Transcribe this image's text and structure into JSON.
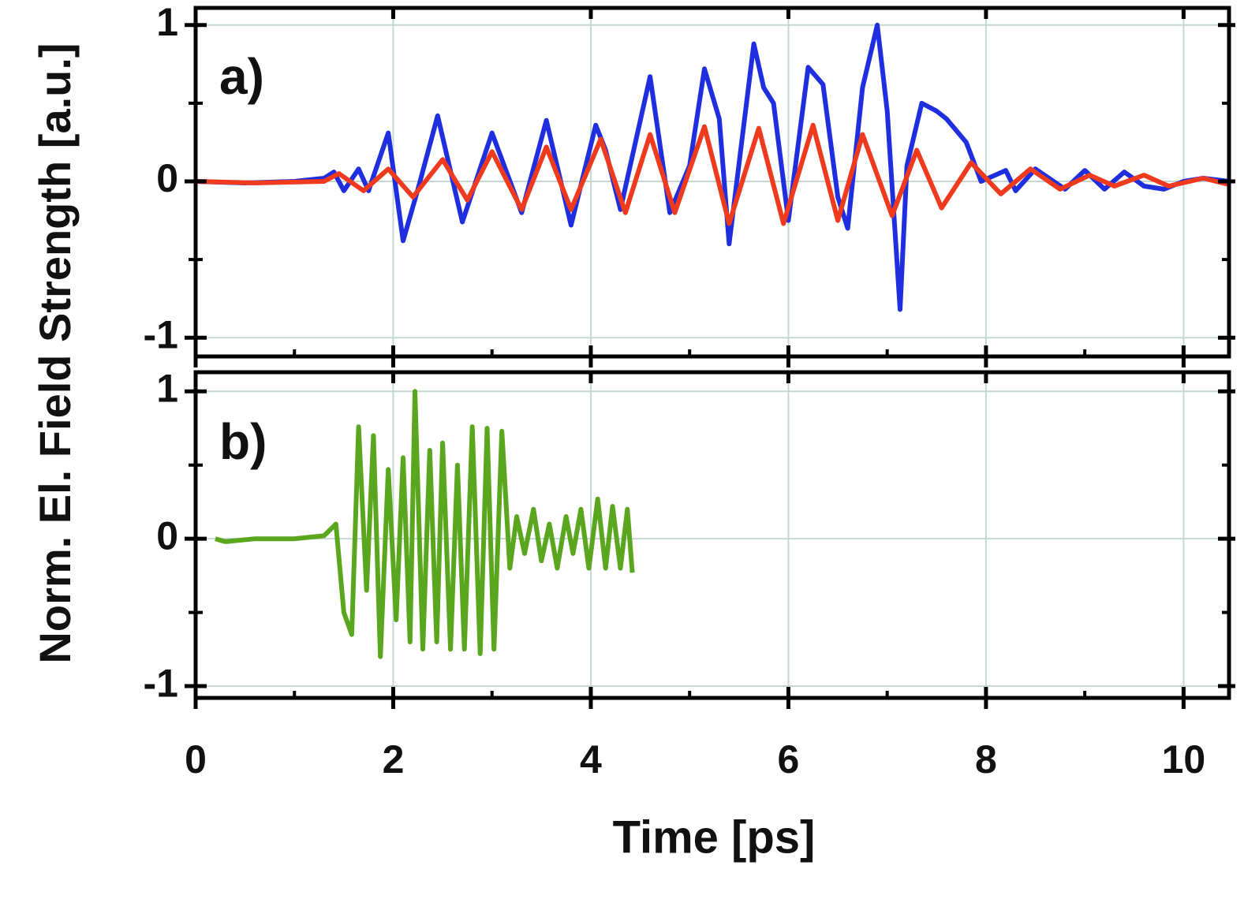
{
  "chart_data": [
    {
      "type": "line",
      "annotation": "a)",
      "ylabel": "Norm. El. Field Strength [a.u.]",
      "xlim": [
        0,
        10.46
      ],
      "xticks": [
        0,
        2,
        4,
        6,
        8,
        10
      ],
      "xticks_minor": [
        1,
        3,
        5,
        7,
        9
      ],
      "ylim": [
        -1.12,
        1.11
      ],
      "yticks": [
        -1,
        0,
        1
      ],
      "yticks_minor": [
        -0.5,
        0.5
      ],
      "grid": true,
      "series": [
        {
          "color": "#1f2fe0",
          "x": [
            0,
            0.5,
            1.0,
            1.3,
            1.4,
            1.5,
            1.65,
            1.75,
            1.95,
            2.1,
            2.25,
            2.45,
            2.7,
            3.0,
            3.3,
            3.55,
            3.8,
            4.05,
            4.15,
            4.3,
            4.6,
            4.8,
            5.0,
            5.15,
            5.3,
            5.4,
            5.65,
            5.75,
            5.85,
            6.0,
            6.2,
            6.35,
            6.5,
            6.6,
            6.75,
            6.9,
            7.0,
            7.13,
            7.2,
            7.35,
            7.5,
            7.6,
            7.8,
            7.95,
            8.2,
            8.3,
            8.5,
            8.8,
            9.0,
            9.2,
            9.4,
            9.6,
            9.8,
            10.0,
            10.2,
            10.46
          ],
          "values": [
            0,
            -0.01,
            0,
            0.02,
            0.06,
            -0.06,
            0.08,
            -0.06,
            0.31,
            -0.38,
            -0.05,
            0.42,
            -0.26,
            0.31,
            -0.2,
            0.39,
            -0.28,
            0.36,
            0.2,
            -0.18,
            0.67,
            -0.2,
            0.1,
            0.72,
            0.4,
            -0.4,
            0.88,
            0.6,
            0.5,
            -0.25,
            0.73,
            0.62,
            -0.1,
            -0.3,
            0.6,
            1.0,
            0.45,
            -0.82,
            0.1,
            0.5,
            0.45,
            0.4,
            0.25,
            0.0,
            0.07,
            -0.06,
            0.08,
            -0.05,
            0.07,
            -0.05,
            0.06,
            -0.03,
            -0.05,
            0.0,
            0.02,
            0.0
          ]
        },
        {
          "color": "#f03a1e",
          "x": [
            0,
            0.6,
            1.3,
            1.45,
            1.7,
            1.95,
            2.2,
            2.5,
            2.75,
            3.0,
            3.3,
            3.55,
            3.8,
            4.1,
            4.35,
            4.6,
            4.85,
            5.15,
            5.4,
            5.7,
            5.95,
            6.25,
            6.5,
            6.75,
            7.05,
            7.3,
            7.55,
            7.85,
            8.15,
            8.45,
            8.75,
            9.05,
            9.3,
            9.6,
            9.85,
            10.2,
            10.46
          ],
          "values": [
            0,
            -0.01,
            0,
            0.05,
            -0.06,
            0.08,
            -0.1,
            0.14,
            -0.12,
            0.19,
            -0.18,
            0.22,
            -0.18,
            0.27,
            -0.2,
            0.3,
            -0.2,
            0.35,
            -0.27,
            0.34,
            -0.27,
            0.36,
            -0.25,
            0.3,
            -0.22,
            0.2,
            -0.17,
            0.12,
            -0.08,
            0.08,
            -0.05,
            0.04,
            -0.03,
            0.04,
            -0.03,
            0.02,
            -0.02
          ]
        }
      ]
    },
    {
      "type": "line",
      "annotation": "b)",
      "xlabel": "Time [ps]",
      "xlim": [
        0,
        10.46
      ],
      "xticks": [
        0,
        2,
        4,
        6,
        8,
        10
      ],
      "xticks_minor": [
        1,
        3,
        5,
        7,
        9
      ],
      "ylim": [
        -1.08,
        1.13
      ],
      "yticks": [
        -1,
        0,
        1
      ],
      "yticks_minor": [
        -0.5,
        0.5
      ],
      "grid": true,
      "series": [
        {
          "color": "#5aa61e",
          "x": [
            0.2,
            0.3,
            0.6,
            1.0,
            1.3,
            1.42,
            1.5,
            1.58,
            1.65,
            1.73,
            1.8,
            1.87,
            1.95,
            2.03,
            2.1,
            2.17,
            2.22,
            2.3,
            2.37,
            2.44,
            2.5,
            2.58,
            2.65,
            2.72,
            2.8,
            2.88,
            2.95,
            3.02,
            3.1,
            3.18,
            3.25,
            3.33,
            3.42,
            3.5,
            3.58,
            3.66,
            3.75,
            3.82,
            3.9,
            3.98,
            4.07,
            4.15,
            4.22,
            4.3,
            4.37,
            4.42
          ],
          "values": [
            0,
            -0.02,
            0,
            0,
            0.02,
            0.1,
            -0.5,
            -0.65,
            0.76,
            -0.35,
            0.7,
            -0.8,
            0.47,
            -0.55,
            0.55,
            -0.7,
            1.0,
            -0.75,
            0.6,
            -0.7,
            0.65,
            -0.75,
            0.5,
            -0.75,
            0.76,
            -0.78,
            0.75,
            -0.75,
            0.73,
            -0.2,
            0.15,
            -0.1,
            0.2,
            -0.15,
            0.1,
            -0.2,
            0.15,
            -0.1,
            0.2,
            -0.2,
            0.27,
            -0.2,
            0.22,
            -0.2,
            0.2,
            -0.23
          ]
        }
      ]
    }
  ]
}
